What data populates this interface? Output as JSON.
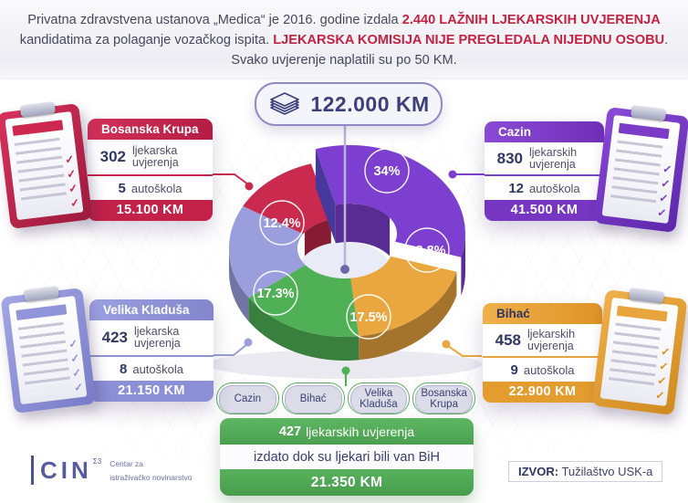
{
  "header": {
    "line1_normal": "Privatna zdravstvena ustanova „Medica“ je 2016. godine izdala ",
    "line1_bold": "2.440 LAŽNIH LJEKARSKIH UVJERENJA",
    "line2_normal": "kandidatima za polaganje vozačkog ispita. ",
    "line2_bold": "LJEKARSKA KOMISIJA NIJE PREGLEDALA NIJEDNU OSOBU",
    "line2_period": ".",
    "line3": "Svako uvjerenje naplatili su po 50 KM."
  },
  "total_badge": {
    "amount": "122.000 KM"
  },
  "cards": [
    {
      "city": "Bosanska Krupa",
      "certificates": "302",
      "certificates_label": "ljekarska uvjerenja",
      "schools": "5",
      "schools_label": "autoškola",
      "amount": "15.100 KM",
      "color": "#c9244b"
    },
    {
      "city": "Cazin",
      "certificates": "830",
      "certificates_label": "ljekarskih uvjerenja",
      "schools": "12",
      "schools_label": "autoškola",
      "amount": "41.500 KM",
      "color": "#7d41c8"
    },
    {
      "city": "Velika Kladuša",
      "certificates": "423",
      "certificates_label": "ljekarska uvjerenja",
      "schools": "8",
      "schools_label": "autoškola",
      "amount": "21.150 KM",
      "color": "#9094d8"
    },
    {
      "city": "Bihać",
      "certificates": "458",
      "certificates_label": "ljekarskih uvjerenja",
      "schools": "9",
      "schools_label": "autoškola",
      "amount": "22.900 KM",
      "color": "#e8a33c"
    }
  ],
  "chart_data": {
    "type": "pie",
    "title": "122.000 KM",
    "series": [
      {
        "name": "Cazin",
        "percent": 34,
        "percent_label": "34%",
        "amount": "41.500 KM",
        "color": "#7d3fd0"
      },
      {
        "name": "Bihać",
        "percent": 18.8,
        "percent_label": "18.8%",
        "amount": "22.900 KM",
        "color": "#eaa63f"
      },
      {
        "name": "Izdato van BiH",
        "percent": 17.5,
        "percent_label": "17.5%",
        "amount": "21.350 KM",
        "color": "#4fb056"
      },
      {
        "name": "Velika Kladuša",
        "percent": 17.3,
        "percent_label": "17.3%",
        "amount": "21.150 KM",
        "color": "#9a9edc"
      },
      {
        "name": "Bosanska Krupa",
        "percent": 12.4,
        "percent_label": "12.4%",
        "amount": "15.100 KM",
        "color": "#c92a4e"
      }
    ],
    "legend_position": "none",
    "center_total": "122.000 KM"
  },
  "bottom": {
    "chips": [
      "Cazin",
      "Bihać",
      "Velika Kladuša",
      "Bosanska Krupa"
    ],
    "certificates": "427",
    "certificates_label": "ljekarskih uvjerenja",
    "note": "izdato dok su ljekari bili van BiH",
    "amount": "21.350 KM"
  },
  "footer": {
    "logo_text": "CIN",
    "logo_mark": "Σ3",
    "logo_sub1": "Centar za",
    "logo_sub2": "istraživačko novinarstvo",
    "source_label": "IZVOR:",
    "source_value": "Tužilaštvo USK-a"
  }
}
